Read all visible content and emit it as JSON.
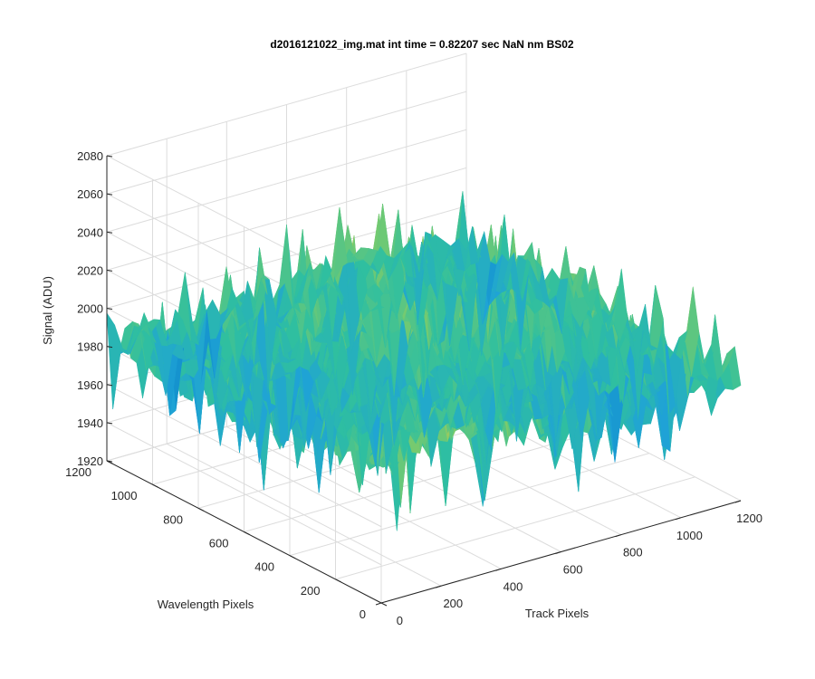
{
  "chart_data": {
    "type": "surface",
    "title": "d2016121022_img.mat int time = 0.82207 sec  NaN nm BS02",
    "zlabel": "Signal (ADU)",
    "ylabel": "Wavelength Pixels",
    "xlabel": "Track Pixels",
    "zlim": [
      1920,
      2080
    ],
    "ylim": [
      0,
      1200
    ],
    "xlim": [
      0,
      1200
    ],
    "z_ticks": [
      "1920",
      "1940",
      "1960",
      "1980",
      "2000",
      "2020",
      "2040",
      "2060",
      "2080"
    ],
    "y_ticks": [
      "0",
      "200",
      "400",
      "600",
      "800",
      "1000",
      "1200"
    ],
    "x_ticks": [
      "0",
      "200",
      "400",
      "600",
      "800",
      "1000",
      "1200"
    ],
    "grid": true,
    "colormap": [
      "#0072bd",
      "#1fa3d6",
      "#2fbfa0",
      "#7ccb6b",
      "#d6c64a"
    ],
    "surface_mean": 1985,
    "surface_range": [
      1935,
      2070
    ]
  }
}
